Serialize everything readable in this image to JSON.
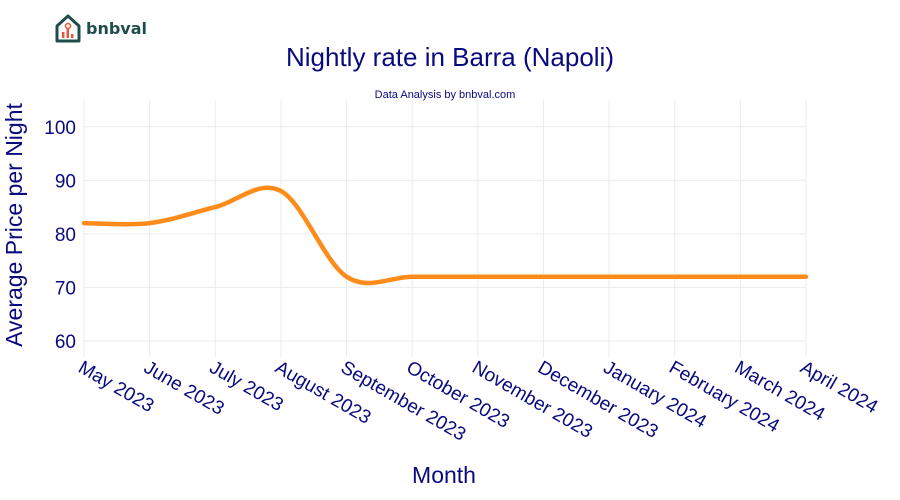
{
  "brand": {
    "name": "bnbval",
    "color": "#1f4d4a",
    "accent": "#e8543a",
    "icon": "house-chart-icon"
  },
  "chart_data": {
    "type": "line",
    "title": "Nightly rate in Barra (Napoli)",
    "subtitle": "Data Analysis by bnbval.com",
    "xlabel": "Month",
    "ylabel": "Average Price per Night",
    "categories": [
      "May 2023",
      "June 2023",
      "July 2023",
      "August 2023",
      "September 2023",
      "October 2023",
      "November 2023",
      "December 2023",
      "January 2024",
      "February 2024",
      "March 2024",
      "April 2024"
    ],
    "series": [
      {
        "values": [
          82,
          82,
          85,
          88,
          72,
          72,
          72,
          72,
          72,
          72,
          72,
          72
        ],
        "color": "#ff8c1a"
      }
    ],
    "ylim": [
      57,
      105
    ],
    "yticks": [
      60,
      70,
      80,
      90,
      100
    ],
    "grid": true,
    "line_shape": "spline"
  }
}
